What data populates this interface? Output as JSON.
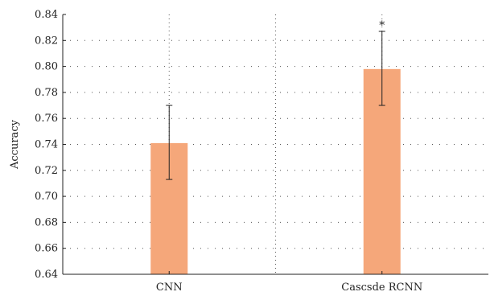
{
  "chart_data": {
    "type": "bar",
    "title": "",
    "xlabel": "",
    "ylabel": "Accuracy",
    "categories": [
      "CNN",
      "Cascsde RCNN"
    ],
    "values": [
      0.741,
      0.798
    ],
    "error_low": [
      0.713,
      0.77
    ],
    "error_high": [
      0.77,
      0.827
    ],
    "annotations": [
      "",
      "*"
    ],
    "ylim": [
      0.64,
      0.84
    ],
    "yticks": [
      0.64,
      0.66,
      0.68,
      0.7,
      0.72,
      0.74,
      0.76,
      0.78,
      0.8,
      0.82,
      0.84
    ],
    "ytick_labels": [
      "0.64",
      "0.66",
      "0.68",
      "0.70",
      "0.72",
      "0.74",
      "0.76",
      "0.78",
      "0.80",
      "0.82",
      "0.84"
    ],
    "grid": true,
    "legend": "none",
    "colors": {
      "bar": "#f5a77a",
      "error_bar": "#222222",
      "axis": "#222222",
      "grid": "#555555"
    }
  }
}
